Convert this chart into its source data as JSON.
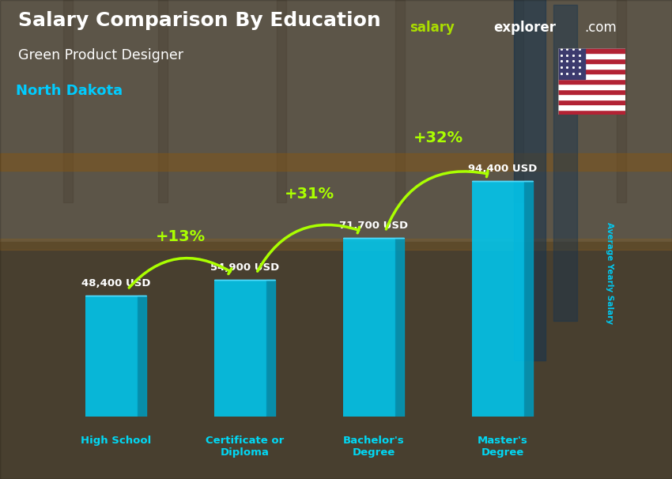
{
  "title": "Salary Comparison By Education",
  "subtitle": "Green Product Designer",
  "location": "North Dakota",
  "ylabel": "Average Yearly Salary",
  "categories": [
    "High School",
    "Certificate or\nDiploma",
    "Bachelor's\nDegree",
    "Master's\nDegree"
  ],
  "values": [
    48400,
    54900,
    71700,
    94400
  ],
  "value_labels": [
    "48,400 USD",
    "54,900 USD",
    "71,700 USD",
    "94,400 USD"
  ],
  "pct_labels": [
    "+13%",
    "+31%",
    "+32%"
  ],
  "bar_color_face": "#00C8F0",
  "bar_color_side": "#0099BB",
  "bar_color_top": "#55DDFF",
  "bg_top_color": "#7a7060",
  "bg_bottom_color": "#5a4e3a",
  "title_color": "#FFFFFF",
  "subtitle_color": "#FFFFFF",
  "location_color": "#00CCFF",
  "value_color": "#FFFFFF",
  "pct_color": "#AAFF00",
  "cat_label_color": "#00D8F5",
  "ylim": [
    0,
    115000
  ],
  "brand_salary_color": "#AADD00",
  "brand_explorer_color": "#FFFFFF",
  "rot_label_color": "#00C8F0"
}
